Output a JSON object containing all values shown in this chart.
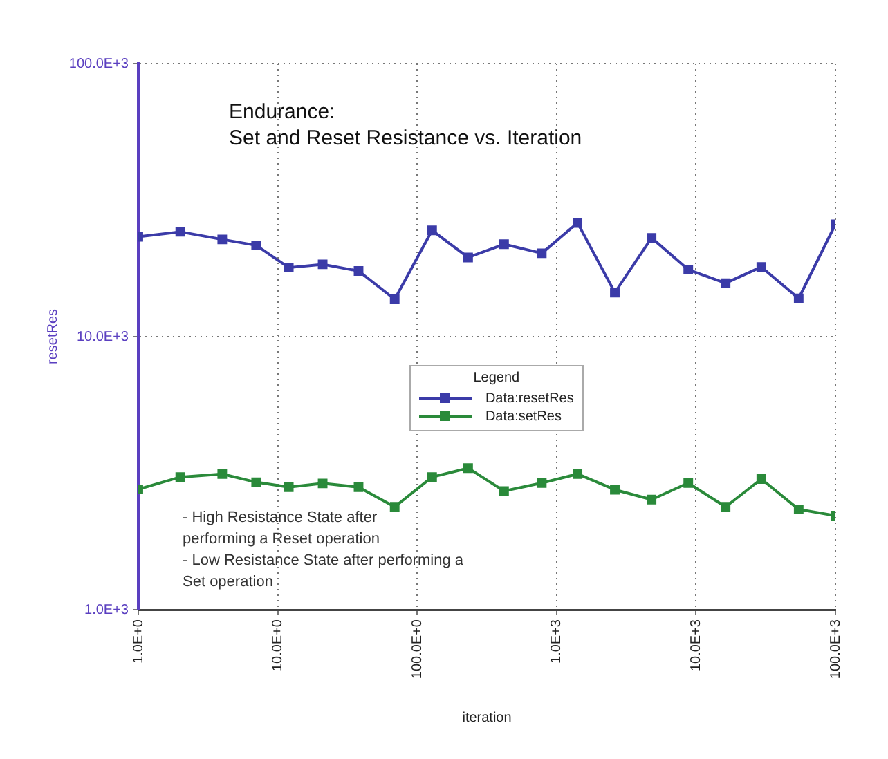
{
  "chart_data": {
    "type": "line",
    "title": "Endurance:\nSet and Reset Resistance vs. Iteration",
    "xlabel": "iteration",
    "ylabel": "resetRes",
    "legend_title": "Legend",
    "legend": "center",
    "marker": "square",
    "line_style": "solid",
    "grid": true,
    "log": "xy",
    "x": [
      1,
      2,
      4,
      7,
      12,
      21,
      38,
      69,
      128,
      232,
      420,
      783,
      1413,
      2617,
      4800,
      8800,
      16300,
      29400,
      54500,
      100000
    ],
    "xlim": [
      1,
      100000
    ],
    "ylim": [
      1000,
      100000
    ],
    "xticks": [
      {
        "value": 1,
        "label": "1.0E+0"
      },
      {
        "value": 10,
        "label": "10.0E+0"
      },
      {
        "value": 100,
        "label": "100.0E+0"
      },
      {
        "value": 1000,
        "label": "1.0E+3"
      },
      {
        "value": 10000,
        "label": "10.0E+3"
      },
      {
        "value": 100000,
        "label": "100.0E+3"
      }
    ],
    "yticks": [
      {
        "value": 1000,
        "label": "1.0E+3"
      },
      {
        "value": 10000,
        "label": "10.0E+3"
      },
      {
        "value": 100000,
        "label": "100.0E+3"
      }
    ],
    "series": [
      {
        "name": "Data:resetRes",
        "color": "#3b3ba8",
        "values": [
          23200,
          24200,
          22700,
          21600,
          17900,
          18400,
          17400,
          13700,
          24500,
          19500,
          21800,
          20200,
          26100,
          14500,
          23000,
          17600,
          15700,
          18000,
          13800,
          25800
        ]
      },
      {
        "name": "Data:setRes",
        "color": "#2a8a3a",
        "values": [
          2760,
          3060,
          3140,
          2930,
          2810,
          2900,
          2810,
          2380,
          3060,
          3300,
          2720,
          2910,
          3140,
          2750,
          2530,
          2910,
          2380,
          3010,
          2330,
          2210
        ]
      }
    ],
    "annotations": [
      "- High Resistance State after\nperforming a Reset operation\n- Low Resistance State after performing a\nSet operation"
    ]
  }
}
